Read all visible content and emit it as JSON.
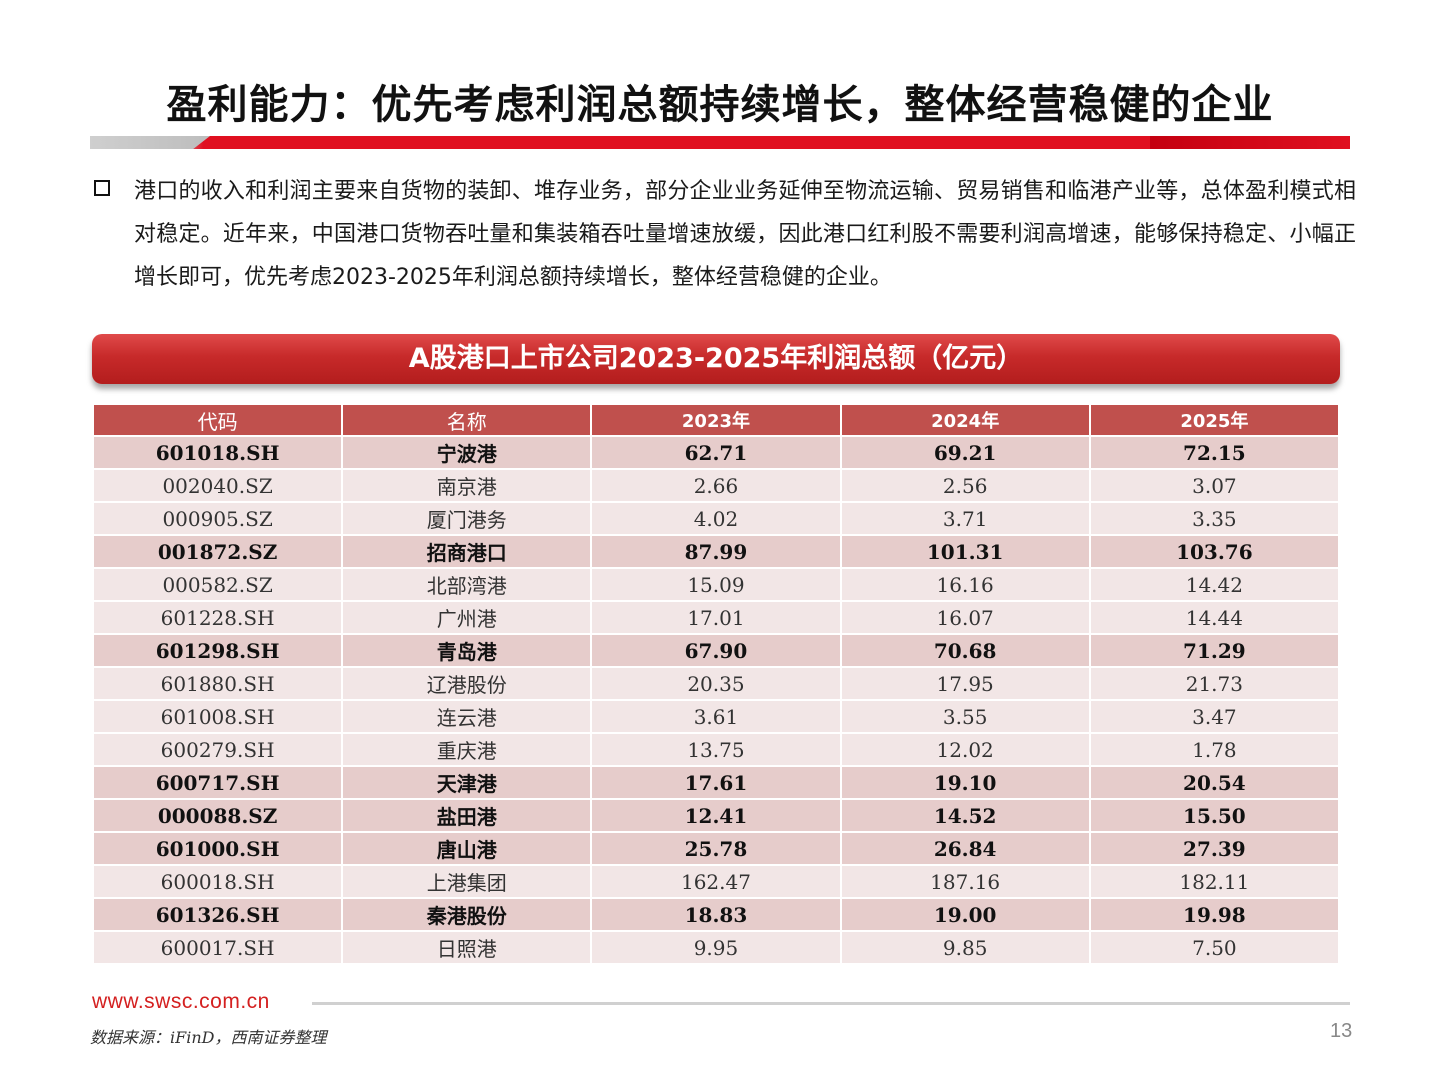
{
  "title": "盈利能力：优先考虑利润总额持续增长，整体经营稳健的企业",
  "bullet_text": "港口的收入和利润主要来自货物的装卸、堆存业务，部分企业业务延伸至物流运输、贸易销售和临港产业等，总体盈利模式相对稳定。近年来，中国港口货物吞吐量和集装箱吞吐量增速放缓，因此港口红利股不需要利润高增速，能够保持稳定、小幅正增长即可，优先考虑2023-2025年利润总额持续增长，整体经营稳健的企业。",
  "table_title": "A股港口上市公司2023-2025年利润总额（亿元）",
  "columns": [
    "代码",
    "名称",
    "2023年",
    "2024年",
    "2025年"
  ],
  "rows": [
    {
      "code": "601018.SH",
      "name": "宁波港",
      "y2023": "62.71",
      "y2024": "69.21",
      "y2025": "72.15",
      "highlight": true
    },
    {
      "code": "002040.SZ",
      "name": "南京港",
      "y2023": "2.66",
      "y2024": "2.56",
      "y2025": "3.07",
      "highlight": false
    },
    {
      "code": "000905.SZ",
      "name": "厦门港务",
      "y2023": "4.02",
      "y2024": "3.71",
      "y2025": "3.35",
      "highlight": false
    },
    {
      "code": "001872.SZ",
      "name": "招商港口",
      "y2023": "87.99",
      "y2024": "101.31",
      "y2025": "103.76",
      "highlight": true
    },
    {
      "code": "000582.SZ",
      "name": "北部湾港",
      "y2023": "15.09",
      "y2024": "16.16",
      "y2025": "14.42",
      "highlight": false
    },
    {
      "code": "601228.SH",
      "name": "广州港",
      "y2023": "17.01",
      "y2024": "16.07",
      "y2025": "14.44",
      "highlight": false
    },
    {
      "code": "601298.SH",
      "name": "青岛港",
      "y2023": "67.90",
      "y2024": "70.68",
      "y2025": "71.29",
      "highlight": true
    },
    {
      "code": "601880.SH",
      "name": "辽港股份",
      "y2023": "20.35",
      "y2024": "17.95",
      "y2025": "21.73",
      "highlight": false
    },
    {
      "code": "601008.SH",
      "name": "连云港",
      "y2023": "3.61",
      "y2024": "3.55",
      "y2025": "3.47",
      "highlight": false
    },
    {
      "code": "600279.SH",
      "name": "重庆港",
      "y2023": "13.75",
      "y2024": "12.02",
      "y2025": "1.78",
      "highlight": false
    },
    {
      "code": "600717.SH",
      "name": "天津港",
      "y2023": "17.61",
      "y2024": "19.10",
      "y2025": "20.54",
      "highlight": true
    },
    {
      "code": "000088.SZ",
      "name": "盐田港",
      "y2023": "12.41",
      "y2024": "14.52",
      "y2025": "15.50",
      "highlight": true
    },
    {
      "code": "601000.SH",
      "name": "唐山港",
      "y2023": "25.78",
      "y2024": "26.84",
      "y2025": "27.39",
      "highlight": true
    },
    {
      "code": "600018.SH",
      "name": "上港集团",
      "y2023": "162.47",
      "y2024": "187.16",
      "y2025": "182.11",
      "highlight": false
    },
    {
      "code": "601326.SH",
      "name": "秦港股份",
      "y2023": "18.83",
      "y2024": "19.00",
      "y2025": "19.98",
      "highlight": true
    },
    {
      "code": "600017.SH",
      "name": "日照港",
      "y2023": "9.95",
      "y2024": "9.85",
      "y2025": "7.50",
      "highlight": false
    }
  ],
  "footer": {
    "url": "www.swsc.com.cn",
    "source": "数据来源：iFinD，西南证券整理",
    "page_number": "13"
  },
  "colors": {
    "accent_red": "#e01020",
    "header_red": "#c0504d",
    "highlight_row": "#e6cccb",
    "plain_row": "#f2e6e6"
  }
}
